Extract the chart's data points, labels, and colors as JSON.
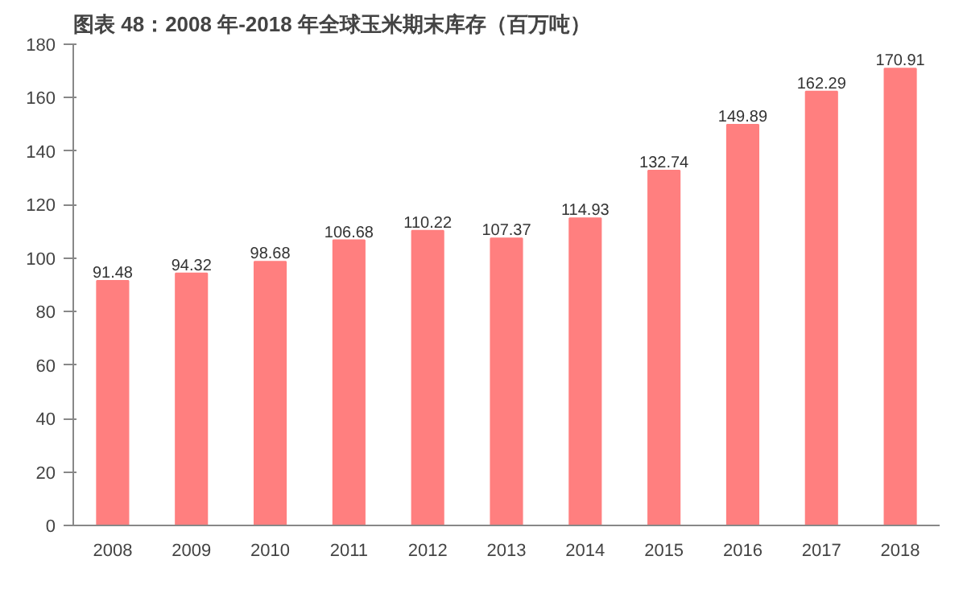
{
  "chart_data": {
    "type": "bar",
    "title": "图表 48：2008 年-2018 年全球玉米期末库存（百万吨）",
    "categories": [
      "2008",
      "2009",
      "2010",
      "2011",
      "2012",
      "2013",
      "2014",
      "2015",
      "2016",
      "2017",
      "2018"
    ],
    "values": [
      91.48,
      94.32,
      98.68,
      106.68,
      110.22,
      107.37,
      114.93,
      132.74,
      149.89,
      162.29,
      170.91
    ],
    "color": "#ff7f7f",
    "ylim": [
      0,
      180
    ],
    "yticks": [
      0,
      20,
      40,
      60,
      80,
      100,
      120,
      140,
      160,
      180
    ],
    "grid": false,
    "data_labels": true
  }
}
